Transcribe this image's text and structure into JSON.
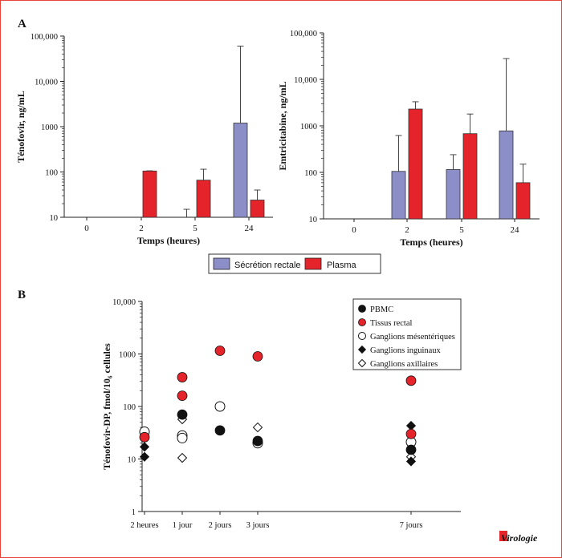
{
  "panel_a_label": "A",
  "panel_b_label": "B",
  "legend_a": {
    "items": [
      {
        "label": "Sécrétion rectale",
        "color": "#8c8ec8"
      },
      {
        "label": "Plasma",
        "color": "#e5232b"
      }
    ]
  },
  "chart_data": [
    {
      "type": "bar",
      "scale": "log",
      "ylabel": "Ténofovir, ng/mL",
      "xlabel": "Temps (heures)",
      "ylim": [
        10,
        100000
      ],
      "yticks": [
        "10",
        "100",
        "1000",
        "10,000",
        "100,000"
      ],
      "categories": [
        "0",
        "2",
        "5",
        "24"
      ],
      "series": [
        {
          "name": "Sécrétion rectale",
          "color": "#8c8ec8",
          "values": [
            null,
            null,
            null,
            1200
          ],
          "error_upper": [
            null,
            null,
            15,
            60000
          ]
        },
        {
          "name": "Plasma",
          "color": "#e5232b",
          "values": [
            null,
            105,
            66,
            24
          ],
          "error_upper": [
            null,
            106,
            115,
            40
          ]
        }
      ]
    },
    {
      "type": "bar",
      "scale": "log",
      "ylabel": "Emtricitabine, ng/mL",
      "xlabel": "Temps (heures)",
      "ylim": [
        10,
        100000
      ],
      "yticks": [
        "10",
        "100",
        "1000",
        "10,000",
        "100,000"
      ],
      "categories": [
        "0",
        "2",
        "5",
        "24"
      ],
      "series": [
        {
          "name": "Sécrétion rectale",
          "color": "#8c8ec8",
          "values": [
            null,
            105,
            115,
            780
          ],
          "error_upper": [
            null,
            620,
            240,
            28000
          ]
        },
        {
          "name": "Plasma",
          "color": "#e5232b",
          "values": [
            null,
            2300,
            680,
            60
          ],
          "error_upper": [
            null,
            3300,
            1800,
            150
          ]
        }
      ]
    },
    {
      "type": "scatter",
      "scale": "log",
      "ylabel": "Ténofovir-DP, fmol/10₆ cellules",
      "ylim": [
        1,
        10000
      ],
      "yticks": [
        "1",
        "10",
        "100",
        "1000",
        "10,000"
      ],
      "categories": [
        "2 heures",
        "1 jour",
        "2 jours",
        "3 jours",
        "7 jours"
      ],
      "series": [
        {
          "name": "PBMC",
          "marker": "circle-black",
          "points": [
            [
              1,
              70
            ],
            [
              2,
              35
            ],
            [
              3,
              22
            ],
            [
              4,
              15
            ]
          ]
        },
        {
          "name": "Tissus rectal",
          "marker": "circle-red",
          "points": [
            [
              0,
              26
            ],
            [
              1,
              360
            ],
            [
              1,
              160
            ],
            [
              2,
              1150
            ],
            [
              3,
              900
            ],
            [
              4,
              310
            ],
            [
              4,
              30
            ]
          ]
        },
        {
          "name": "Ganglions mésentériques",
          "marker": "circle-open",
          "points": [
            [
              0,
              33
            ],
            [
              1,
              28
            ],
            [
              1,
              25
            ],
            [
              2,
              100
            ],
            [
              3,
              20
            ],
            [
              4,
              21
            ]
          ]
        },
        {
          "name": "Ganglions inguinaux",
          "marker": "diamond-black",
          "points": [
            [
              0,
              17
            ],
            [
              0,
              11
            ],
            [
              4,
              43
            ],
            [
              4,
              9
            ]
          ]
        },
        {
          "name": "Ganglions axillaires",
          "marker": "diamond-open",
          "points": [
            [
              1,
              57
            ],
            [
              1,
              10.5
            ],
            [
              3,
              40
            ],
            [
              4,
              11
            ]
          ]
        }
      ]
    }
  ],
  "watermark": "Virologie"
}
